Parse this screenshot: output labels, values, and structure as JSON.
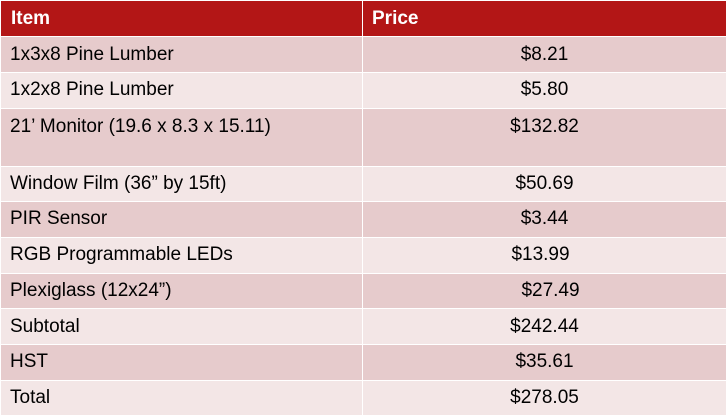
{
  "table": {
    "headers": {
      "item": "Item",
      "price": "Price"
    },
    "rows": [
      {
        "item": "1x3x8 Pine Lumber",
        "price": "$8.21"
      },
      {
        "item": "1x2x8 Pine Lumber",
        "price": "$5.80"
      },
      {
        "item": "21’ Monitor (19.6 x 8.3 x 15.11)",
        "price": "$132.82"
      },
      {
        "item": "Window Film (36” by 15ft)",
        "price": "$50.69"
      },
      {
        "item": "PIR Sensor",
        "price": "$3.44"
      },
      {
        "item": "RGB Programmable LEDs",
        "price": "$13.99"
      },
      {
        "item": "Plexiglass (12x24”)",
        "price": "$27.49"
      },
      {
        "item": "Subtotal",
        "price": "$242.44"
      },
      {
        "item": "HST",
        "price": "$35.61"
      },
      {
        "item": "Total",
        "price": "$278.05"
      }
    ]
  },
  "colors": {
    "header_bg": "#b31616",
    "header_text": "#ffffff",
    "row_band_dark": "#e6cbcc",
    "row_band_light": "#f3e6e6"
  }
}
